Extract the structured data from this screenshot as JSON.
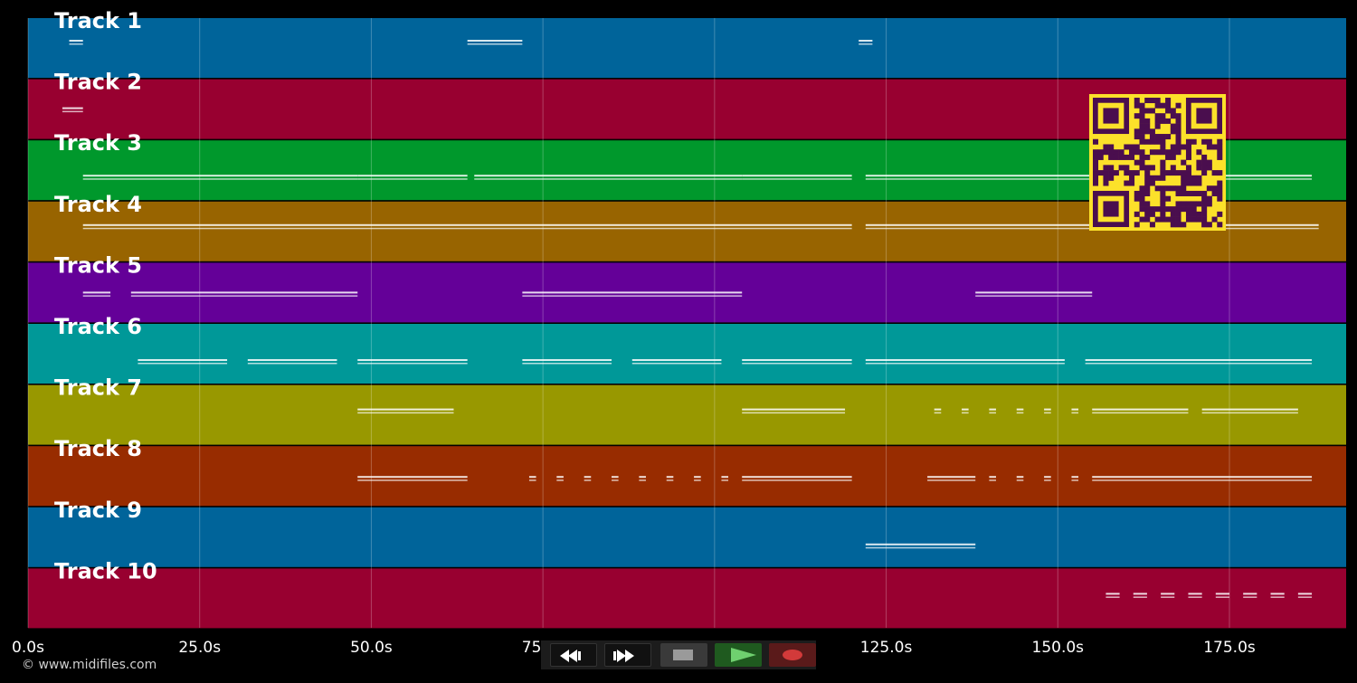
{
  "timeline": {
    "tracks": [
      {
        "name": "Track 1",
        "color": "#00649a"
      },
      {
        "name": "Track 2",
        "color": "#980030"
      },
      {
        "name": "Track 3",
        "color": "#00982c"
      },
      {
        "name": "Track 4",
        "color": "#986400"
      },
      {
        "name": "Track 5",
        "color": "#640098"
      },
      {
        "name": "Track 6",
        "color": "#009898"
      },
      {
        "name": "Track 7",
        "color": "#989800"
      },
      {
        "name": "Track 8",
        "color": "#982c00"
      },
      {
        "name": "Track 9",
        "color": "#00649a"
      },
      {
        "name": "Track 10",
        "color": "#980030"
      }
    ],
    "time_max_seconds": 192,
    "grid_interval_seconds": 25,
    "tick_labels": [
      "0.0s",
      "25.0s",
      "50.0s",
      "75.0s",
      "100.0s",
      "125.0s",
      "150.0s",
      "175.0s"
    ],
    "note_segments": [
      {
        "track": 1,
        "spans": [
          [
            6,
            8
          ],
          [
            64,
            72
          ],
          [
            121,
            123
          ]
        ]
      },
      {
        "track": 2,
        "spans": [
          [
            5,
            8
          ]
        ]
      },
      {
        "track": 3,
        "spans": [
          [
            8,
            48
          ],
          [
            48,
            64
          ],
          [
            65,
            104
          ],
          [
            104,
            120
          ],
          [
            122,
            187
          ]
        ]
      },
      {
        "track": 4,
        "spans": [
          [
            8,
            120
          ],
          [
            122,
            188
          ]
        ]
      },
      {
        "track": 5,
        "spans": [
          [
            8,
            12
          ],
          [
            15,
            48
          ],
          [
            72,
            104
          ],
          [
            138,
            155
          ]
        ]
      },
      {
        "track": 6,
        "spans": [
          [
            16,
            29
          ],
          [
            32,
            45
          ],
          [
            48,
            64
          ],
          [
            72,
            85
          ],
          [
            88,
            101
          ],
          [
            104,
            120
          ],
          [
            122,
            151
          ],
          [
            154,
            187
          ]
        ]
      },
      {
        "track": 7,
        "spans": [
          [
            48,
            62
          ],
          [
            104,
            119
          ],
          [
            132,
            133
          ],
          [
            136,
            137
          ],
          [
            140,
            141
          ],
          [
            144,
            145
          ],
          [
            148,
            149
          ],
          [
            152,
            153
          ],
          [
            155,
            169
          ],
          [
            171,
            185
          ]
        ]
      },
      {
        "track": 8,
        "spans": [
          [
            48,
            64
          ],
          [
            73,
            74
          ],
          [
            77,
            78
          ],
          [
            81,
            82
          ],
          [
            85,
            86
          ],
          [
            89,
            90
          ],
          [
            93,
            94
          ],
          [
            97,
            98
          ],
          [
            101,
            102
          ],
          [
            104,
            120
          ],
          [
            131,
            138
          ],
          [
            140,
            141
          ],
          [
            144,
            145
          ],
          [
            148,
            149
          ],
          [
            152,
            153
          ],
          [
            155,
            187
          ]
        ]
      },
      {
        "track": 9,
        "spans": [
          [
            122,
            138
          ]
        ]
      },
      {
        "track": 10,
        "spans": [
          [
            157,
            159
          ],
          [
            161,
            163
          ],
          [
            165,
            167
          ],
          [
            169,
            171
          ],
          [
            173,
            175
          ],
          [
            177,
            179
          ],
          [
            181,
            183
          ],
          [
            185,
            187
          ]
        ]
      }
    ],
    "qr_colors": {
      "background": "#fce12a",
      "modules": "#4a0e4e"
    }
  },
  "footer": {
    "copyright": "© www.midifiles.com"
  },
  "transport": {
    "rewind_icon": "rewind-icon",
    "ffwd_icon": "fast-forward-icon",
    "stop_icon": "stop-icon",
    "play_icon": "play-icon",
    "record_icon": "record-icon"
  }
}
